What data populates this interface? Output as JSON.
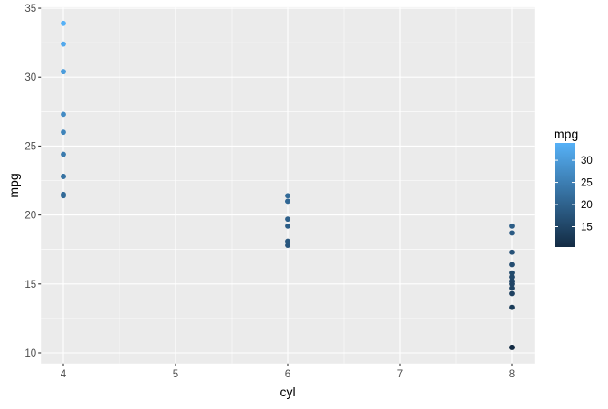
{
  "chart_data": {
    "type": "scatter",
    "xlabel": "cyl",
    "ylabel": "mpg",
    "xlim": [
      3.8,
      8.2
    ],
    "ylim": [
      9.225,
      35.075
    ],
    "x_ticks": [
      4,
      5,
      6,
      7,
      8
    ],
    "y_ticks": [
      10,
      15,
      20,
      25,
      30,
      35
    ],
    "grid": true,
    "points": {
      "x": [
        4,
        4,
        4,
        4,
        4,
        4,
        4,
        4,
        4,
        4,
        4,
        6,
        6,
        6,
        6,
        6,
        6,
        6,
        8,
        8,
        8,
        8,
        8,
        8,
        8,
        8,
        8,
        8,
        8,
        8,
        8,
        8
      ],
      "y": [
        22.8,
        24.4,
        22.8,
        32.4,
        30.4,
        33.9,
        21.5,
        27.3,
        26.0,
        30.4,
        21.4,
        21.0,
        21.0,
        21.4,
        18.1,
        19.2,
        17.8,
        19.7,
        18.7,
        14.3,
        16.4,
        17.3,
        15.2,
        10.4,
        10.4,
        14.7,
        15.5,
        15.2,
        13.3,
        19.2,
        15.8,
        15.0
      ]
    },
    "color_scale": {
      "title": "mpg",
      "low_color": "#132B43",
      "high_color": "#56B1F7",
      "range": [
        10.4,
        33.9
      ],
      "ticks": [
        15,
        20,
        25,
        30
      ]
    },
    "legend_position": "right"
  }
}
